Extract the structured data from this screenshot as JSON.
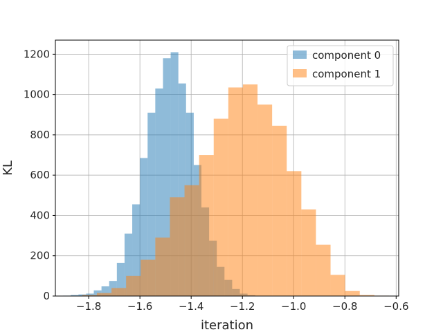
{
  "chart_data": {
    "type": "histogram",
    "title": "",
    "xlabel": "iteration",
    "ylabel": "KL",
    "xlim": [
      -1.93,
      -0.59
    ],
    "ylim": [
      0,
      1270
    ],
    "xticks": [
      -1.8,
      -1.6,
      -1.4,
      -1.2,
      -1.0,
      -0.8,
      -0.6
    ],
    "xtick_labels": [
      "−1.8",
      "−1.6",
      "−1.4",
      "−1.2",
      "−1.0",
      "−0.8",
      "−0.6"
    ],
    "yticks": [
      0,
      200,
      400,
      600,
      800,
      1000,
      1200
    ],
    "ytick_labels": [
      "0",
      "200",
      "400",
      "600",
      "800",
      "1000",
      "1200"
    ],
    "grid": true,
    "legend_position": "top-right",
    "series": [
      {
        "name": "component 0",
        "color": "#1f77b4",
        "alpha": 0.5,
        "bin_edges": [
          -1.9,
          -1.87,
          -1.84,
          -1.81,
          -1.78,
          -1.75,
          -1.72,
          -1.69,
          -1.66,
          -1.63,
          -1.6,
          -1.57,
          -1.54,
          -1.51,
          -1.48,
          -1.45,
          -1.42,
          -1.39,
          -1.36,
          -1.33,
          -1.3,
          -1.27,
          -1.24,
          -1.21,
          -1.18,
          -1.15,
          -1.12
        ],
        "counts": [
          2,
          5,
          8,
          12,
          28,
          48,
          75,
          165,
          310,
          455,
          685,
          910,
          1030,
          1180,
          1210,
          1055,
          910,
          650,
          440,
          275,
          145,
          80,
          35,
          12,
          4,
          1
        ]
      },
      {
        "name": "component 1",
        "color": "#ff7f0e",
        "alpha": 0.5,
        "bin_edges": [
          -1.825,
          -1.768,
          -1.711,
          -1.654,
          -1.597,
          -1.54,
          -1.483,
          -1.426,
          -1.369,
          -1.312,
          -1.255,
          -1.198,
          -1.141,
          -1.084,
          -1.027,
          -0.97,
          -0.913,
          -0.856,
          -0.799,
          -0.742,
          -0.685,
          -0.628
        ],
        "counts": [
          5,
          15,
          40,
          100,
          180,
          290,
          490,
          550,
          700,
          880,
          1035,
          1050,
          950,
          845,
          620,
          430,
          255,
          105,
          25,
          5,
          2
        ]
      }
    ]
  }
}
